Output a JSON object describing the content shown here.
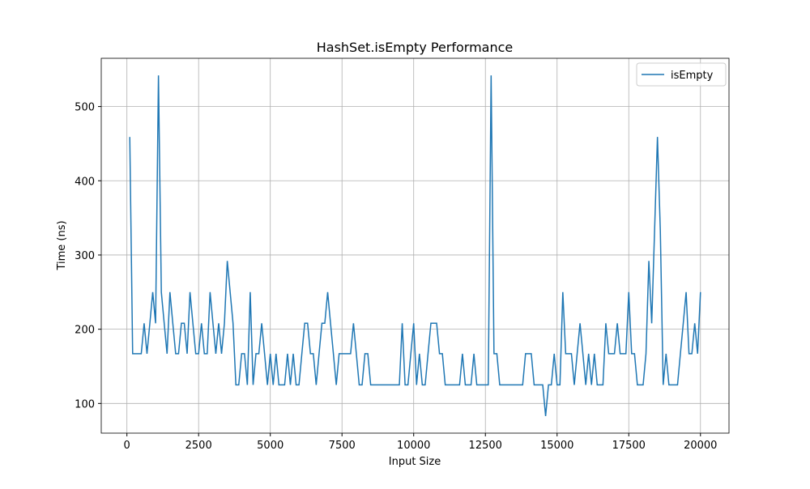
{
  "chart_data": {
    "type": "line",
    "title": "HashSet.isEmpty Performance",
    "x_label": "Input Size",
    "y_label": "Time (ns)",
    "x": [
      100,
      200,
      300,
      400,
      500,
      600,
      700,
      800,
      900,
      1000,
      1100,
      1200,
      1300,
      1400,
      1500,
      1600,
      1700,
      1800,
      1900,
      2000,
      2100,
      2200,
      2300,
      2400,
      2500,
      2600,
      2700,
      2800,
      2900,
      3000,
      3100,
      3200,
      3300,
      3400,
      3500,
      3600,
      3700,
      3800,
      3900,
      4000,
      4100,
      4200,
      4300,
      4400,
      4500,
      4600,
      4700,
      4800,
      4900,
      5000,
      5100,
      5200,
      5300,
      5400,
      5500,
      5600,
      5700,
      5800,
      5900,
      6000,
      6100,
      6200,
      6300,
      6400,
      6500,
      6600,
      6700,
      6800,
      6900,
      7000,
      7100,
      7200,
      7300,
      7400,
      7500,
      7600,
      7700,
      7800,
      7900,
      8000,
      8100,
      8200,
      8300,
      8400,
      8500,
      8600,
      8700,
      8800,
      8900,
      9000,
      9100,
      9200,
      9300,
      9400,
      9500,
      9600,
      9700,
      9800,
      9900,
      10000,
      10100,
      10200,
      10300,
      10400,
      10500,
      10600,
      10700,
      10800,
      10900,
      11000,
      11100,
      11200,
      11300,
      11400,
      11500,
      11600,
      11700,
      11800,
      11900,
      12000,
      12100,
      12200,
      12300,
      12400,
      12500,
      12600,
      12700,
      12800,
      12900,
      13000,
      13100,
      13200,
      13300,
      13400,
      13500,
      13600,
      13700,
      13800,
      13900,
      14000,
      14100,
      14200,
      14300,
      14400,
      14500,
      14600,
      14700,
      14800,
      14900,
      15000,
      15100,
      15200,
      15300,
      15400,
      15500,
      15600,
      15700,
      15800,
      15900,
      16000,
      16100,
      16200,
      16300,
      16400,
      16500,
      16600,
      16700,
      16800,
      16900,
      17000,
      17100,
      17200,
      17300,
      17400,
      17500,
      17600,
      17700,
      17800,
      17900,
      18000,
      18100,
      18200,
      18300,
      18400,
      18500,
      18600,
      18700,
      18800,
      18900,
      19000,
      19100,
      19200,
      19300,
      19400,
      19500,
      19600,
      19700,
      19800,
      19900,
      20000
    ],
    "series": [
      {
        "name": "isEmpty",
        "color": "#1f77b4",
        "values": [
          459,
          167,
          167,
          167,
          167,
          208,
          167,
          208,
          250,
          208,
          542,
          250,
          208,
          167,
          250,
          208,
          167,
          167,
          208,
          208,
          167,
          250,
          208,
          167,
          167,
          208,
          167,
          167,
          250,
          208,
          167,
          208,
          167,
          208,
          292,
          250,
          208,
          125,
          125,
          167,
          167,
          125,
          250,
          125,
          167,
          167,
          208,
          167,
          125,
          167,
          125,
          167,
          125,
          125,
          125,
          167,
          125,
          167,
          125,
          125,
          167,
          208,
          208,
          167,
          167,
          125,
          167,
          208,
          208,
          250,
          208,
          167,
          125,
          167,
          167,
          167,
          167,
          167,
          208,
          167,
          125,
          125,
          167,
          167,
          125,
          125,
          125,
          125,
          125,
          125,
          125,
          125,
          125,
          125,
          125,
          208,
          125,
          125,
          167,
          208,
          125,
          167,
          125,
          125,
          167,
          208,
          208,
          208,
          167,
          167,
          125,
          125,
          125,
          125,
          125,
          125,
          167,
          125,
          125,
          125,
          167,
          125,
          125,
          125,
          125,
          125,
          542,
          167,
          167,
          125,
          125,
          125,
          125,
          125,
          125,
          125,
          125,
          125,
          167,
          167,
          167,
          125,
          125,
          125,
          125,
          83,
          125,
          125,
          167,
          125,
          125,
          250,
          167,
          167,
          167,
          125,
          167,
          208,
          167,
          125,
          167,
          125,
          167,
          125,
          125,
          125,
          208,
          167,
          167,
          167,
          208,
          167,
          167,
          167,
          250,
          167,
          167,
          125,
          125,
          125,
          167,
          292,
          208,
          333,
          459,
          333,
          125,
          167,
          125,
          125,
          125,
          125,
          167,
          208,
          250,
          167,
          167,
          208,
          167,
          250
        ]
      }
    ],
    "xlim": [
      -895,
      20995
    ],
    "xticks": [
      0,
      2500,
      5000,
      7500,
      10000,
      12500,
      15000,
      17500,
      20000
    ],
    "ylim": [
      60,
      565
    ],
    "yticks": [
      100,
      200,
      300,
      400,
      500
    ],
    "grid": true,
    "legend": "upper right"
  }
}
